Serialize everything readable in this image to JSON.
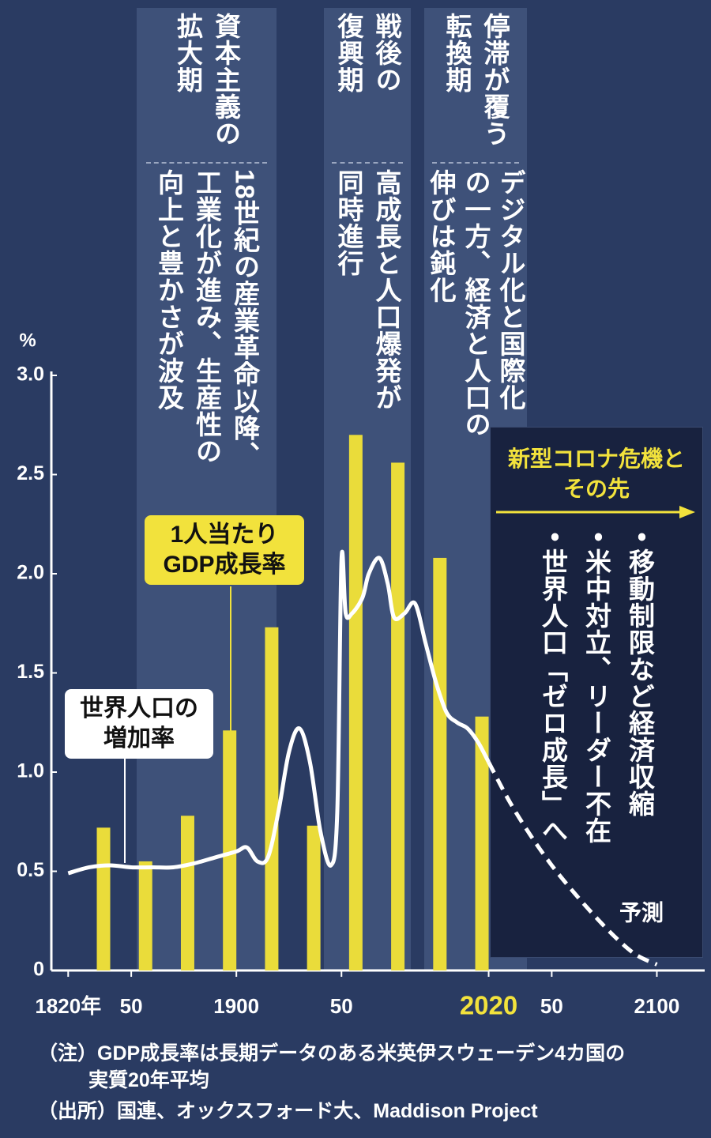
{
  "chart_data": {
    "type": "bar",
    "y_unit": "%",
    "xlim": [
      1812,
      2122
    ],
    "ylim": [
      0,
      3
    ],
    "xticks": [
      {
        "value": 1820,
        "label": "1820年"
      },
      {
        "value": 1850,
        "label": "50"
      },
      1900,
      {
        "value": 1950,
        "label": "50"
      },
      2020,
      {
        "value": 2050,
        "label": "50"
      },
      2100
    ],
    "yticks": [
      0,
      0.5,
      {
        "value": 1,
        "label": "1.0"
      },
      1.5,
      {
        "value": 2,
        "label": "2.0"
      },
      2.5,
      {
        "value": 3,
        "label": "3.0"
      }
    ],
    "xtick_highlight": {
      "index": 4,
      "color": "#f2e23c"
    },
    "grid": false,
    "series": [
      {
        "name": "1人当たりGDP成長率",
        "type": "bar",
        "color": "#eadc3a",
        "x": [
          1840,
          1860,
          1880,
          1900,
          1920,
          1940,
          1960,
          1980,
          2000,
          2020
        ],
        "values": [
          0.72,
          0.55,
          0.78,
          1.21,
          1.73,
          0.73,
          2.7,
          2.56,
          2.08,
          1.28
        ]
      },
      {
        "name": "世界人口の増加率",
        "type": "line",
        "color": "#ffffff",
        "x": [
          1820,
          1830,
          1840,
          1850,
          1860,
          1870,
          1880,
          1890,
          1900,
          1905,
          1910,
          1915,
          1920,
          1925,
          1930,
          1935,
          1940,
          1945,
          1948,
          1950,
          1952,
          1955,
          1960,
          1963,
          1968,
          1972,
          1975,
          1980,
          1985,
          1990,
          1995,
          2000,
          2005,
          2010,
          2015,
          2020
        ],
        "values": [
          0.49,
          0.52,
          0.53,
          0.52,
          0.52,
          0.52,
          0.54,
          0.57,
          0.6,
          0.62,
          0.55,
          0.57,
          0.8,
          1.1,
          1.22,
          1.05,
          0.7,
          0.53,
          0.8,
          2.07,
          1.8,
          1.8,
          1.88,
          2.0,
          2.08,
          1.95,
          1.78,
          1.8,
          1.85,
          1.65,
          1.45,
          1.3,
          1.25,
          1.22,
          1.15,
          1.05
        ]
      },
      {
        "name": "予測",
        "type": "line",
        "dashed": true,
        "color": "#ffffff",
        "x": [
          2020,
          2030,
          2040,
          2050,
          2060,
          2070,
          2080,
          2090,
          2100
        ],
        "values": [
          1.05,
          0.85,
          0.68,
          0.53,
          0.4,
          0.28,
          0.17,
          0.08,
          0.03
        ]
      }
    ],
    "periods": [
      {
        "title": [
          "資本主義の",
          "拡大期"
        ],
        "description": [
          "18世紀の産業革命以降、",
          "工業化が進み、生産性の",
          "向上と豊かさが波及"
        ]
      },
      {
        "title": [
          "戦後の",
          "復興期"
        ],
        "description": [
          "高成長と人口爆発が",
          "同時進行"
        ]
      },
      {
        "title": [
          "停滞が覆う",
          "転換期"
        ],
        "description": [
          "デジタル化と国際化",
          "の一方、経済と人口の",
          "伸びは鈍化"
        ]
      }
    ],
    "forecast_box": {
      "title": [
        "新型コロナ危機と",
        "その先"
      ],
      "items": [
        "・移動制限など経済収縮",
        "・米中対立、リーダー不在",
        "・世界人口「ゼロ成長」へ"
      ]
    },
    "notes": [
      "（注）GDP成長率は長期データのある米英伊スウェーデン4カ国の",
      "実質20年平均"
    ],
    "source": "（出所）国連、オックスフォード大、Maddison Project"
  }
}
